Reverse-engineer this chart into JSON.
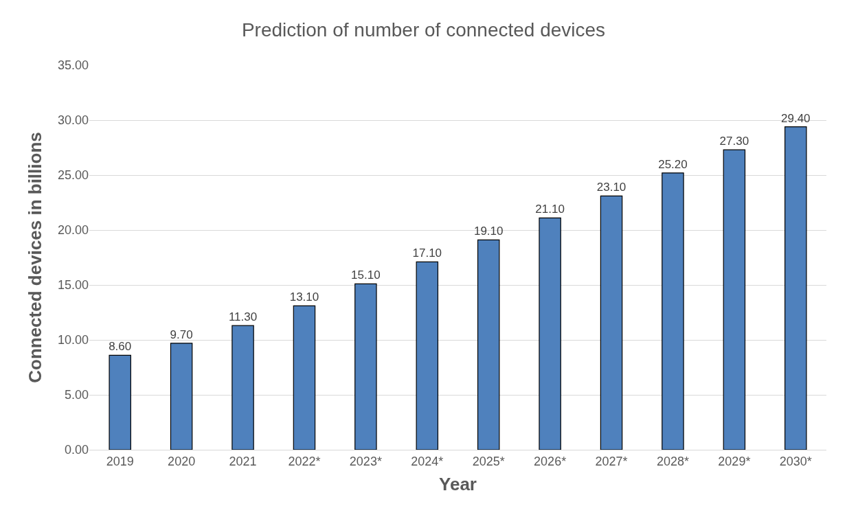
{
  "chart_data": {
    "type": "bar",
    "title": "Prediction of number of connected devices",
    "xlabel": "Year",
    "ylabel": "Connected devices in billions",
    "categories": [
      "2019",
      "2020",
      "2021",
      "2022*",
      "2023*",
      "2024*",
      "2025*",
      "2026*",
      "2027*",
      "2028*",
      "2029*",
      "2030*"
    ],
    "values": [
      8.6,
      9.7,
      11.3,
      13.1,
      15.1,
      17.1,
      19.1,
      21.1,
      23.1,
      25.2,
      27.3,
      29.4
    ],
    "value_labels": [
      "8.60",
      "9.70",
      "11.30",
      "13.10",
      "15.10",
      "17.10",
      "19.10",
      "21.10",
      "23.10",
      "25.20",
      "27.30",
      "29.40"
    ],
    "color": "#4f81bd",
    "ylim": [
      0,
      35
    ],
    "yticks": [
      {
        "value": 0,
        "label": "0.00"
      },
      {
        "value": 5,
        "label": "5.00"
      },
      {
        "value": 10,
        "label": "10.00"
      },
      {
        "value": 15,
        "label": "15.00"
      },
      {
        "value": 20,
        "label": "20.00"
      },
      {
        "value": 25,
        "label": "25.00"
      },
      {
        "value": 30,
        "label": "30.00"
      },
      {
        "value": 35,
        "label": "35.00"
      }
    ],
    "grid": "y"
  }
}
